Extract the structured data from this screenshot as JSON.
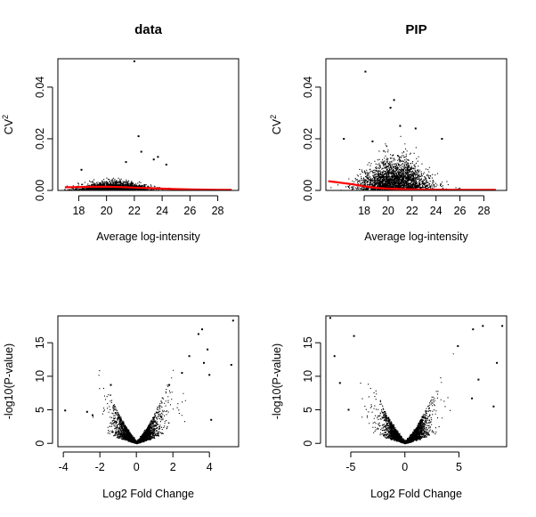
{
  "chart_data": [
    {
      "type": "scatter",
      "title": "data",
      "xlabel": "Average log-intensity",
      "ylabel": "CV",
      "ylabel_superscript": "2",
      "xlim": [
        16.5,
        29.5
      ],
      "ylim": [
        0,
        0.051
      ],
      "xticks": [
        18,
        20,
        22,
        24,
        26,
        28
      ],
      "yticks": [
        0.0,
        0.02,
        0.04
      ],
      "ytick_labels": [
        "0.00",
        "0.02",
        "0.04"
      ],
      "point_color": "#000000",
      "cloud": {
        "x_center": 20.5,
        "x_spread": 2.2,
        "y_scale": 0.0012
      },
      "outliers": [
        {
          "x": 22.0,
          "y": 0.05
        },
        {
          "x": 22.3,
          "y": 0.021
        },
        {
          "x": 22.5,
          "y": 0.015
        },
        {
          "x": 23.7,
          "y": 0.013
        },
        {
          "x": 21.4,
          "y": 0.011
        },
        {
          "x": 23.4,
          "y": 0.012
        },
        {
          "x": 24.3,
          "y": 0.01
        },
        {
          "x": 18.2,
          "y": 0.008
        }
      ],
      "trend": {
        "name": "",
        "color": "#ff0000",
        "x": [
          17,
          18,
          19,
          20,
          21,
          22,
          23,
          24,
          25,
          26,
          27,
          28,
          29
        ],
        "y": [
          0.0012,
          0.0013,
          0.0014,
          0.0014,
          0.0013,
          0.0011,
          0.0009,
          0.0007,
          0.0005,
          0.0004,
          0.0003,
          0.0002,
          0.0002
        ]
      }
    },
    {
      "type": "scatter",
      "title": "PIP",
      "xlabel": "Average log-intensity",
      "ylabel": "CV",
      "ylabel_superscript": "2",
      "xlim": [
        14.8,
        29.9
      ],
      "ylim": [
        0,
        0.051
      ],
      "xticks": [
        18,
        20,
        22,
        24,
        26,
        28
      ],
      "yticks": [
        0.0,
        0.02,
        0.04
      ],
      "ytick_labels": [
        "0.00",
        "0.02",
        "0.04"
      ],
      "point_color": "#000000",
      "cloud": {
        "x_center": 20.5,
        "x_spread": 2.4,
        "y_scale": 0.0045
      },
      "outliers": [
        {
          "x": 18.1,
          "y": 0.046
        },
        {
          "x": 20.5,
          "y": 0.035
        },
        {
          "x": 20.2,
          "y": 0.032
        },
        {
          "x": 21.0,
          "y": 0.025
        },
        {
          "x": 22.3,
          "y": 0.024
        },
        {
          "x": 16.3,
          "y": 0.02
        },
        {
          "x": 18.7,
          "y": 0.019
        },
        {
          "x": 24.5,
          "y": 0.02
        }
      ],
      "trend": {
        "name": "",
        "color": "#ff0000",
        "x": [
          15,
          16,
          17,
          18,
          19,
          20,
          21,
          22,
          23,
          24,
          25,
          26,
          27,
          28,
          29
        ],
        "y": [
          0.0036,
          0.003,
          0.0024,
          0.0016,
          0.001,
          0.0007,
          0.0005,
          0.0004,
          0.0003,
          0.0003,
          0.0002,
          0.0002,
          0.0002,
          0.0002,
          0.0002
        ]
      }
    },
    {
      "type": "scatter",
      "title": "",
      "xlabel": "Log2 Fold Change",
      "ylabel": "-log10(P-value)",
      "xlim": [
        -4.3,
        5.6
      ],
      "ylim": [
        -0.5,
        19
      ],
      "xticks": [
        -4,
        -2,
        0,
        2,
        4
      ],
      "yticks": [
        0,
        5,
        10,
        15
      ],
      "point_color": "#000000",
      "volcano": {
        "spread": 0.8,
        "pos_bias": 1.2
      },
      "outliers": [
        {
          "x": 5.3,
          "y": 18.3
        },
        {
          "x": 3.6,
          "y": 17.0
        },
        {
          "x": 3.4,
          "y": 16.3
        },
        {
          "x": 3.9,
          "y": 14.0
        },
        {
          "x": 2.9,
          "y": 13.0
        },
        {
          "x": 3.7,
          "y": 12.0
        },
        {
          "x": 5.2,
          "y": 11.7
        },
        {
          "x": 2.5,
          "y": 10.5
        },
        {
          "x": 4.0,
          "y": 10.2
        },
        {
          "x": 1.8,
          "y": 8.7
        },
        {
          "x": -1.4,
          "y": 8.7
        },
        {
          "x": -3.9,
          "y": 4.9
        },
        {
          "x": -2.7,
          "y": 4.7
        },
        {
          "x": -2.4,
          "y": 4.2
        },
        {
          "x": 4.1,
          "y": 3.5
        }
      ]
    },
    {
      "type": "scatter",
      "title": "",
      "xlabel": "Log2 Fold Change",
      "ylabel": "-log10(P-value)",
      "xlim": [
        -7.3,
        9.4
      ],
      "ylim": [
        -0.5,
        19
      ],
      "xticks": [
        -5,
        0,
        5
      ],
      "yticks": [
        0,
        5,
        10,
        15
      ],
      "point_color": "#000000",
      "volcano": {
        "spread": 1.4,
        "pos_bias": 1.0
      },
      "outliers": [
        {
          "x": -6.9,
          "y": 18.7
        },
        {
          "x": 6.3,
          "y": 17.0
        },
        {
          "x": 7.2,
          "y": 17.5
        },
        {
          "x": 9.0,
          "y": 17.5
        },
        {
          "x": 8.5,
          "y": 12.0
        },
        {
          "x": -4.7,
          "y": 16.0
        },
        {
          "x": -6.5,
          "y": 13.0
        },
        {
          "x": 6.8,
          "y": 9.5
        },
        {
          "x": -6.0,
          "y": 9.0
        },
        {
          "x": 6.2,
          "y": 6.7
        },
        {
          "x": 8.2,
          "y": 5.5
        },
        {
          "x": -5.2,
          "y": 5.0
        },
        {
          "x": 4.9,
          "y": 14.5
        }
      ]
    }
  ]
}
